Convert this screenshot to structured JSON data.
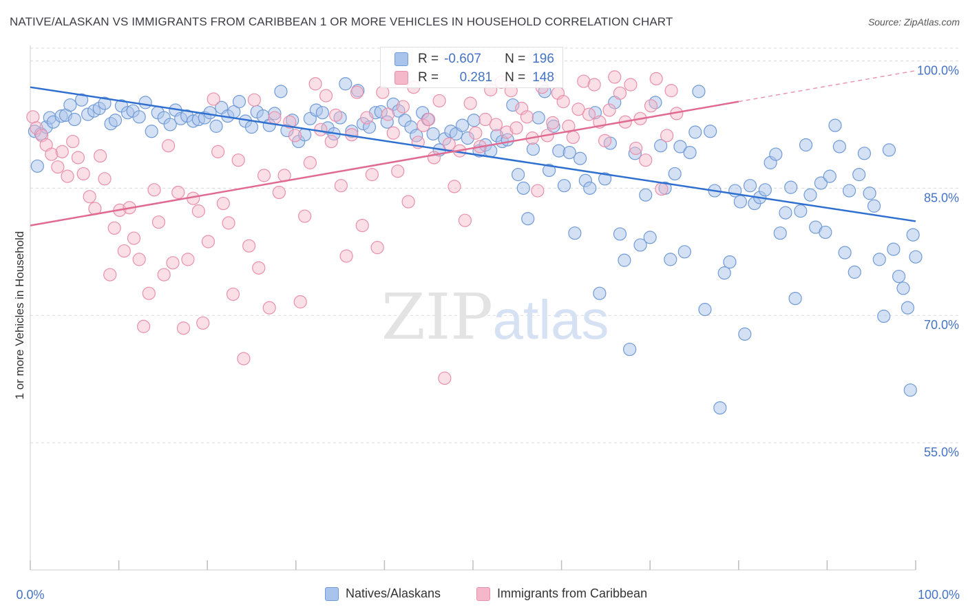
{
  "title": "NATIVE/ALASKAN VS IMMIGRANTS FROM CARIBBEAN 1 OR MORE VEHICLES IN HOUSEHOLD CORRELATION CHART",
  "source": "Source: ZipAtlas.com",
  "watermark": {
    "zip": "ZIP",
    "atlas": "atlas"
  },
  "colors": {
    "blue_fill": "#a9c4ec",
    "blue_stroke": "#6f9ad6",
    "blue_line": "#2e6fd0",
    "pink_fill": "#f5b8ca",
    "pink_stroke": "#ea8fab",
    "pink_line": "#e06a92",
    "axis_label": "#4472c4",
    "grid": "#d9d9d9"
  },
  "stats": {
    "blue": {
      "r_label": "R =",
      "r_value": "-0.607",
      "n_label": "N =",
      "n_value": "196"
    },
    "pink": {
      "r_label": "R =",
      "r_value": "0.281",
      "n_label": "N =",
      "n_value": "148"
    }
  },
  "legend": {
    "blue": "Natives/Alaskans",
    "pink": "Immigrants from Caribbean"
  },
  "chart_data": {
    "type": "scatter",
    "title": "NATIVE/ALASKAN VS IMMIGRANTS FROM CARIBBEAN 1 OR MORE VEHICLES IN HOUSEHOLD CORRELATION CHART",
    "xlabel": "",
    "ylabel": "1 or more Vehicles in Household",
    "xlim": [
      0,
      100
    ],
    "ylim": [
      40,
      101.5
    ],
    "x_tick_labels": [
      "0.0%",
      "100.0%"
    ],
    "y_ticks": [
      55,
      70,
      85,
      100
    ],
    "y_tick_labels": [
      "55.0%",
      "70.0%",
      "85.0%",
      "100.0%"
    ],
    "grid": "horizontal dashed",
    "legend_position": "bottom-center",
    "series": [
      {
        "name": "Natives/Alaskans",
        "color": "#a9c4ec",
        "trendline": {
          "x": [
            0,
            100
          ],
          "y": [
            96.9,
            81.1
          ]
        },
        "points": [
          [
            0.5,
            91.7
          ],
          [
            0.8,
            87.6
          ],
          [
            1.2,
            91.4
          ],
          [
            1.8,
            92.2
          ],
          [
            2.2,
            93.3
          ],
          [
            2.6,
            92.8
          ],
          [
            3.5,
            93.5
          ],
          [
            4.0,
            93.6
          ],
          [
            4.5,
            94.8
          ],
          [
            5.0,
            93.1
          ],
          [
            5.8,
            95.4
          ],
          [
            6.5,
            93.7
          ],
          [
            7.2,
            94.1
          ],
          [
            7.8,
            94.4
          ],
          [
            8.4,
            95.0
          ],
          [
            9.1,
            92.6
          ],
          [
            9.6,
            93.0
          ],
          [
            10.3,
            94.7
          ],
          [
            11.0,
            93.9
          ],
          [
            11.6,
            94.1
          ],
          [
            12.3,
            93.4
          ],
          [
            13.0,
            95.1
          ],
          [
            13.7,
            91.7
          ],
          [
            14.4,
            93.9
          ],
          [
            15.1,
            93.3
          ],
          [
            15.8,
            92.5
          ],
          [
            16.4,
            94.2
          ],
          [
            17.0,
            93.2
          ],
          [
            17.7,
            93.5
          ],
          [
            18.4,
            92.9
          ],
          [
            19.0,
            93.1
          ],
          [
            19.7,
            93.3
          ],
          [
            20.3,
            93.9
          ],
          [
            21.0,
            92.3
          ],
          [
            21.6,
            94.5
          ],
          [
            22.3,
            93.5
          ],
          [
            23.0,
            94.0
          ],
          [
            23.6,
            95.2
          ],
          [
            24.3,
            92.9
          ],
          [
            25.0,
            92.2
          ],
          [
            25.6,
            94.0
          ],
          [
            26.3,
            93.5
          ],
          [
            27.0,
            92.4
          ],
          [
            27.6,
            93.8
          ],
          [
            28.3,
            96.4
          ],
          [
            29.0,
            91.8
          ],
          [
            29.6,
            93.0
          ],
          [
            30.3,
            90.5
          ],
          [
            31.0,
            91.3
          ],
          [
            31.6,
            93.2
          ],
          [
            32.3,
            94.2
          ],
          [
            33.0,
            93.9
          ],
          [
            33.6,
            92.1
          ],
          [
            34.3,
            91.4
          ],
          [
            35.0,
            93.3
          ],
          [
            35.6,
            97.3
          ],
          [
            36.3,
            91.7
          ],
          [
            37.0,
            96.5
          ],
          [
            37.6,
            92.6
          ],
          [
            38.3,
            92.2
          ],
          [
            39.0,
            93.9
          ],
          [
            39.6,
            94.0
          ],
          [
            40.3,
            92.8
          ],
          [
            41.0,
            94.9
          ],
          [
            41.6,
            94.1
          ],
          [
            42.3,
            93.0
          ],
          [
            43.0,
            92.2
          ],
          [
            43.6,
            91.2
          ],
          [
            44.3,
            93.9
          ],
          [
            44.9,
            93.1
          ],
          [
            45.5,
            91.4
          ],
          [
            46.2,
            89.5
          ],
          [
            46.8,
            90.8
          ],
          [
            47.5,
            91.7
          ],
          [
            48.1,
            91.4
          ],
          [
            48.8,
            92.4
          ],
          [
            49.4,
            90.9
          ],
          [
            50.1,
            93.0
          ],
          [
            50.7,
            89.4
          ],
          [
            51.4,
            90.1
          ],
          [
            52.0,
            89.4
          ],
          [
            52.7,
            91.2
          ],
          [
            53.3,
            90.5
          ],
          [
            53.9,
            90.7
          ],
          [
            54.5,
            94.8
          ],
          [
            55.1,
            86.6
          ],
          [
            55.7,
            85.0
          ],
          [
            56.2,
            81.4
          ],
          [
            56.8,
            89.6
          ],
          [
            57.4,
            93.3
          ],
          [
            58.1,
            96.4
          ],
          [
            58.6,
            87.1
          ],
          [
            59.1,
            92.3
          ],
          [
            59.7,
            89.4
          ],
          [
            60.3,
            85.3
          ],
          [
            60.9,
            89.2
          ],
          [
            61.5,
            79.7
          ],
          [
            62.1,
            88.5
          ],
          [
            62.7,
            85.9
          ],
          [
            63.2,
            85.0
          ],
          [
            63.8,
            93.9
          ],
          [
            64.3,
            72.6
          ],
          [
            64.9,
            86.1
          ],
          [
            65.5,
            90.3
          ],
          [
            66.0,
            95.1
          ],
          [
            66.6,
            79.6
          ],
          [
            67.1,
            76.5
          ],
          [
            67.7,
            66.0
          ],
          [
            68.3,
            89.1
          ],
          [
            68.9,
            78.3
          ],
          [
            69.5,
            84.2
          ],
          [
            70.0,
            79.2
          ],
          [
            70.6,
            95.1
          ],
          [
            71.2,
            90.0
          ],
          [
            71.7,
            85.0
          ],
          [
            72.3,
            76.6
          ],
          [
            72.8,
            86.7
          ],
          [
            73.4,
            89.9
          ],
          [
            73.9,
            77.5
          ],
          [
            74.5,
            89.2
          ],
          [
            75.1,
            91.6
          ],
          [
            75.5,
            96.4
          ],
          [
            76.2,
            70.7
          ],
          [
            76.8,
            91.7
          ],
          [
            77.3,
            84.7
          ],
          [
            77.9,
            59.1
          ],
          [
            78.4,
            75.0
          ],
          [
            79.0,
            76.3
          ],
          [
            79.6,
            84.7
          ],
          [
            80.2,
            83.4
          ],
          [
            80.7,
            67.8
          ],
          [
            81.3,
            85.3
          ],
          [
            81.8,
            83.2
          ],
          [
            82.4,
            83.9
          ],
          [
            83.0,
            84.8
          ],
          [
            83.6,
            88.0
          ],
          [
            84.2,
            89.0
          ],
          [
            84.7,
            79.7
          ],
          [
            85.3,
            82.1
          ],
          [
            85.9,
            85.1
          ],
          [
            86.4,
            72.0
          ],
          [
            87.0,
            82.3
          ],
          [
            87.6,
            90.1
          ],
          [
            88.1,
            84.2
          ],
          [
            88.7,
            80.4
          ],
          [
            89.3,
            85.6
          ],
          [
            89.8,
            79.8
          ],
          [
            90.3,
            86.4
          ],
          [
            90.9,
            92.4
          ],
          [
            91.4,
            89.9
          ],
          [
            92.0,
            77.4
          ],
          [
            92.5,
            84.7
          ],
          [
            93.1,
            75.1
          ],
          [
            93.6,
            86.6
          ],
          [
            94.2,
            89.1
          ],
          [
            94.8,
            84.4
          ],
          [
            95.3,
            82.9
          ],
          [
            95.9,
            76.6
          ],
          [
            96.4,
            69.9
          ],
          [
            97.0,
            89.5
          ],
          [
            97.5,
            77.8
          ],
          [
            98.1,
            74.6
          ],
          [
            98.6,
            73.2
          ],
          [
            99.1,
            70.9
          ],
          [
            99.4,
            61.2
          ],
          [
            99.7,
            79.5
          ],
          [
            100.0,
            76.9
          ]
        ]
      },
      {
        "name": "Immigrants from Caribbean",
        "color": "#f5b8ca",
        "trendline": {
          "x": [
            0,
            80
          ],
          "y": [
            80.6,
            95.2
          ]
        },
        "points": [
          [
            0.3,
            93.4
          ],
          [
            0.7,
            92.1
          ],
          [
            1.3,
            91.2
          ],
          [
            1.8,
            90.1
          ],
          [
            2.4,
            89.0
          ],
          [
            3.1,
            87.5
          ],
          [
            3.6,
            89.3
          ],
          [
            4.2,
            86.4
          ],
          [
            4.8,
            90.5
          ],
          [
            5.4,
            88.6
          ],
          [
            6.0,
            86.7
          ],
          [
            6.7,
            84.0
          ],
          [
            7.3,
            82.6
          ],
          [
            7.9,
            88.8
          ],
          [
            8.4,
            86.1
          ],
          [
            9.0,
            74.8
          ],
          [
            9.5,
            80.3
          ],
          [
            10.1,
            82.4
          ],
          [
            10.6,
            77.6
          ],
          [
            11.2,
            82.7
          ],
          [
            11.7,
            79.1
          ],
          [
            12.3,
            76.6
          ],
          [
            12.8,
            68.7
          ],
          [
            13.4,
            72.6
          ],
          [
            14.0,
            84.8
          ],
          [
            14.5,
            81.0
          ],
          [
            15.1,
            74.8
          ],
          [
            15.6,
            90.0
          ],
          [
            16.1,
            76.2
          ],
          [
            16.7,
            84.5
          ],
          [
            17.3,
            68.5
          ],
          [
            17.8,
            76.6
          ],
          [
            18.4,
            83.8
          ],
          [
            19.0,
            82.3
          ],
          [
            19.5,
            69.1
          ],
          [
            20.1,
            78.7
          ],
          [
            20.7,
            95.5
          ],
          [
            21.2,
            89.3
          ],
          [
            21.8,
            83.2
          ],
          [
            22.4,
            80.9
          ],
          [
            22.9,
            72.5
          ],
          [
            23.5,
            88.3
          ],
          [
            24.1,
            64.9
          ],
          [
            24.7,
            78.2
          ],
          [
            25.3,
            95.4
          ],
          [
            25.8,
            75.6
          ],
          [
            26.4,
            86.5
          ],
          [
            27.0,
            70.9
          ],
          [
            27.6,
            93.3
          ],
          [
            28.1,
            84.5
          ],
          [
            28.7,
            86.5
          ],
          [
            29.3,
            92.8
          ],
          [
            29.9,
            91.2
          ],
          [
            30.5,
            71.6
          ],
          [
            31.0,
            81.7
          ],
          [
            31.6,
            88.0
          ],
          [
            32.2,
            97.3
          ],
          [
            32.8,
            91.9
          ],
          [
            33.4,
            95.9
          ],
          [
            34.0,
            90.5
          ],
          [
            34.5,
            93.6
          ],
          [
            35.1,
            85.3
          ],
          [
            35.7,
            77.0
          ],
          [
            36.3,
            91.3
          ],
          [
            36.9,
            96.3
          ],
          [
            37.5,
            80.6
          ],
          [
            38.0,
            93.3
          ],
          [
            38.6,
            86.6
          ],
          [
            39.2,
            78.0
          ],
          [
            39.8,
            96.3
          ],
          [
            40.4,
            93.7
          ],
          [
            41.0,
            91.5
          ],
          [
            41.5,
            87.0
          ],
          [
            42.1,
            94.6
          ],
          [
            42.7,
            83.4
          ],
          [
            43.3,
            96.9
          ],
          [
            43.8,
            90.4
          ],
          [
            44.4,
            92.4
          ],
          [
            45.0,
            93.1
          ],
          [
            45.6,
            88.6
          ],
          [
            46.2,
            95.3
          ],
          [
            46.8,
            62.6
          ],
          [
            47.3,
            90.2
          ],
          [
            47.9,
            85.2
          ],
          [
            48.5,
            89.4
          ],
          [
            49.1,
            81.2
          ],
          [
            49.7,
            95.0
          ],
          [
            50.3,
            91.5
          ],
          [
            50.8,
            89.9
          ],
          [
            51.4,
            93.1
          ],
          [
            52.0,
            96.6
          ],
          [
            52.6,
            92.5
          ],
          [
            53.2,
            97.5
          ],
          [
            53.8,
            91.6
          ],
          [
            54.3,
            96.5
          ],
          [
            54.9,
            92.1
          ],
          [
            55.5,
            94.4
          ],
          [
            56.1,
            93.4
          ],
          [
            56.7,
            90.9
          ],
          [
            57.3,
            84.7
          ],
          [
            57.8,
            96.9
          ],
          [
            58.4,
            91.2
          ],
          [
            59.0,
            92.7
          ],
          [
            59.6,
            96.2
          ],
          [
            60.2,
            95.2
          ],
          [
            60.8,
            92.3
          ],
          [
            61.3,
            91.0
          ],
          [
            61.9,
            94.3
          ],
          [
            62.5,
            97.6
          ],
          [
            63.1,
            93.7
          ],
          [
            63.7,
            97.2
          ],
          [
            64.3,
            92.8
          ],
          [
            64.9,
            90.6
          ],
          [
            65.4,
            94.2
          ],
          [
            66.0,
            98.1
          ],
          [
            66.6,
            96.2
          ],
          [
            67.2,
            92.8
          ],
          [
            67.8,
            97.2
          ],
          [
            68.4,
            89.7
          ],
          [
            68.9,
            93.2
          ],
          [
            69.5,
            88.3
          ],
          [
            70.1,
            94.7
          ],
          [
            70.7,
            97.9
          ],
          [
            71.3,
            84.9
          ],
          [
            71.9,
            91.2
          ],
          [
            72.4,
            96.5
          ],
          [
            73.0,
            93.8
          ]
        ]
      }
    ]
  }
}
